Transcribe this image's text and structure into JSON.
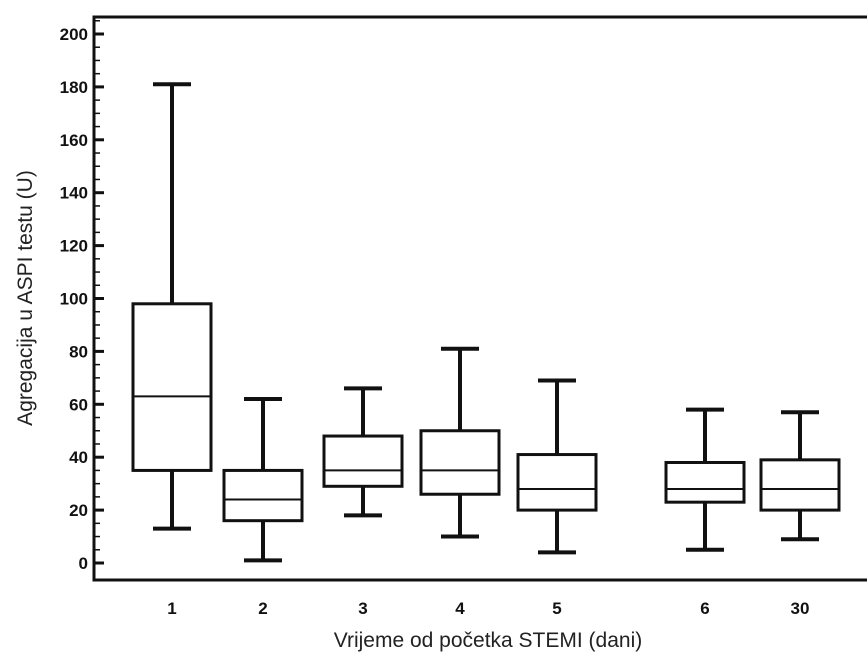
{
  "chart_data": {
    "type": "box",
    "xlabel": "Vrijeme od početka STEMI (dani)",
    "ylabel": "Agregacija u ASPI testu (U)",
    "ylim": [
      -6,
      208
    ],
    "yticks": [
      0,
      20,
      40,
      60,
      80,
      100,
      120,
      140,
      160,
      180,
      200
    ],
    "yminor_step": 5,
    "grid": false,
    "categories": [
      "1",
      "2",
      "3",
      "4",
      "5",
      "6",
      "30"
    ],
    "boxes": [
      {
        "category": "1",
        "min": 13,
        "q1": 35,
        "median": 63,
        "q3": 98,
        "max": 181
      },
      {
        "category": "2",
        "min": 1,
        "q1": 16,
        "median": 24,
        "q3": 35,
        "max": 62
      },
      {
        "category": "3",
        "min": 18,
        "q1": 29,
        "median": 35,
        "q3": 48,
        "max": 66
      },
      {
        "category": "4",
        "min": 10,
        "q1": 26,
        "median": 35,
        "q3": 50,
        "max": 81
      },
      {
        "category": "5",
        "min": 4,
        "q1": 20,
        "median": 28,
        "q3": 41,
        "max": 69
      },
      {
        "category": "6",
        "min": 5,
        "q1": 23,
        "median": 28,
        "q3": 38,
        "max": 58
      },
      {
        "category": "30",
        "min": 9,
        "q1": 20,
        "median": 28,
        "q3": 39,
        "max": 57
      }
    ]
  }
}
